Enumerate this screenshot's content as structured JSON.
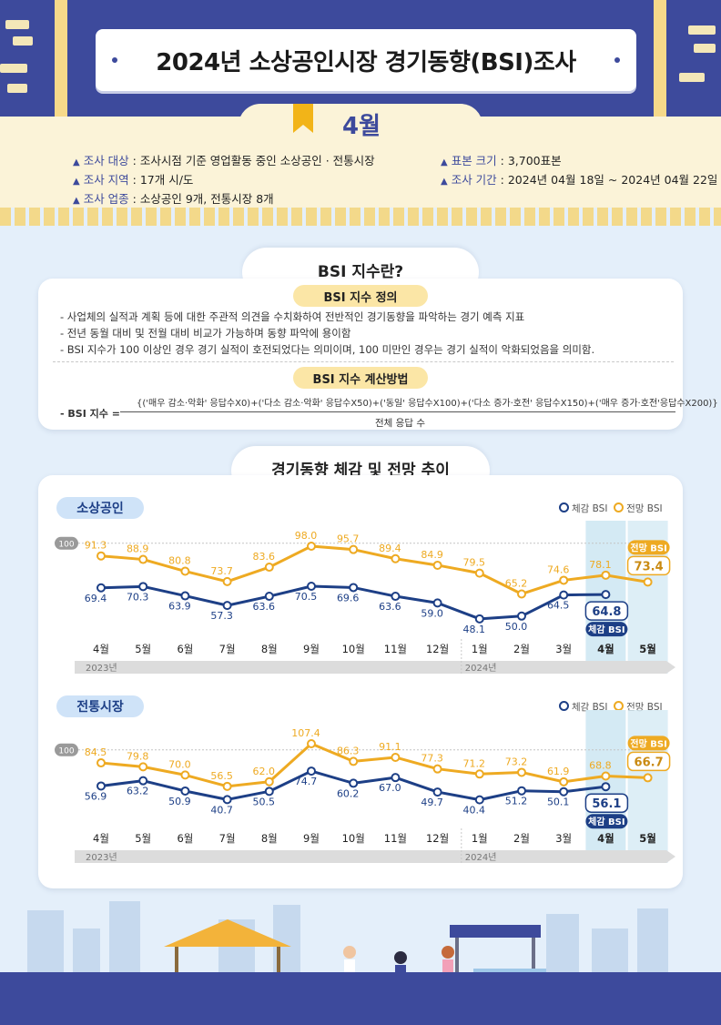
{
  "header": {
    "title": "2024년 소상공인시장 경기동향(BSI)조사",
    "month": "4월"
  },
  "survey_info": {
    "target_label": "조사 대상",
    "target_value": " : 조사시점 기준 영업활동 중인 소상공인 · 전통시장",
    "region_label": "조사 지역",
    "region_value": " : 17개 시/도",
    "industry_label": "조사 업종",
    "industry_value": " : 소상공인 9개, 전통시장 8개",
    "sample_label": "표본 크기",
    "sample_value": " : 3,700표본",
    "period_label": "조사 기간",
    "period_value": " : 2024년 04월 18일 ~ 2024년 04월 22일"
  },
  "bsi_section": {
    "title": "BSI 지수란?",
    "definition_title": "BSI 지수 정의",
    "definitions": [
      "- 사업체의 실적과 계획 등에 대한 주관적 의견을 수치화하여 전반적인 경기동향을 파악하는 경기 예측 지표",
      "- 전년 동월 대비 및 전월 대비 비교가 가능하며 동향 파악에 용이함",
      "- BSI 지수가 100 이상인 경우 경기 실적이 호전되었다는 의미이며, 100 미만인 경우는 경기 실적이 악화되었음을 의미함."
    ],
    "calc_title": "BSI 지수 계산방법",
    "formula_label": "- BSI 지수 =",
    "numerator": "{('매우 감소·악화' 응답수X0)+('다소 감소·악화' 응답수X50)+('동일' 응답수X100)+('다소 증가·호전' 응답수X150)+('매우 증가·호전'응답수X200)}",
    "denominator": "전체 응답 수"
  },
  "trend_section": {
    "title": "경기동향 체감 및 전망 추이"
  },
  "colors": {
    "navy": "#1d3f86",
    "gold": "#eeaa22",
    "forecast_col": "#d4eaf4",
    "reference": "#9a9a9a",
    "header_blue": "#3d4a9c"
  },
  "chart_data": [
    {
      "type": "line",
      "title": "소상공인",
      "categories": [
        "4월",
        "5월",
        "6월",
        "7월",
        "8월",
        "9월",
        "10월",
        "11월",
        "12월",
        "1월",
        "2월",
        "3월",
        "4월",
        "5월"
      ],
      "year_labels": [
        "2023년",
        "2024년"
      ],
      "reference_line": 100,
      "legend": [
        "체감 BSI",
        "전망 BSI"
      ],
      "series": [
        {
          "name": "체감 BSI",
          "values": [
            69.4,
            70.3,
            63.9,
            57.3,
            63.6,
            70.5,
            69.6,
            63.6,
            59.0,
            48.1,
            50.0,
            64.5,
            64.8,
            null
          ]
        },
        {
          "name": "전망 BSI",
          "values": [
            91.3,
            88.9,
            80.8,
            73.7,
            83.6,
            98.0,
            95.7,
            89.4,
            84.9,
            79.5,
            65.2,
            74.6,
            78.1,
            73.4
          ]
        }
      ],
      "callouts": {
        "actual_value": "64.8",
        "actual_tag": "체감 BSI",
        "forecast_value": "73.4",
        "forecast_tag": "전망 BSI"
      }
    },
    {
      "type": "line",
      "title": "전통시장",
      "categories": [
        "4월",
        "5월",
        "6월",
        "7월",
        "8월",
        "9월",
        "10월",
        "11월",
        "12월",
        "1월",
        "2월",
        "3월",
        "4월",
        "5월"
      ],
      "year_labels": [
        "2023년",
        "2024년"
      ],
      "reference_line": 100,
      "legend": [
        "체감 BSI",
        "전망 BSI"
      ],
      "series": [
        {
          "name": "체감 BSI",
          "values": [
            56.9,
            63.2,
            50.9,
            40.7,
            50.5,
            74.7,
            60.2,
            67.0,
            49.7,
            40.4,
            51.2,
            50.1,
            56.1,
            null
          ]
        },
        {
          "name": "전망 BSI",
          "values": [
            84.5,
            79.8,
            70.0,
            56.5,
            62.0,
            107.4,
            86.3,
            91.1,
            77.3,
            71.2,
            73.2,
            61.9,
            68.8,
            66.7
          ]
        }
      ],
      "callouts": {
        "actual_value": "56.1",
        "actual_tag": "체감 BSI",
        "forecast_value": "66.7",
        "forecast_tag": "전망 BSI"
      }
    }
  ]
}
